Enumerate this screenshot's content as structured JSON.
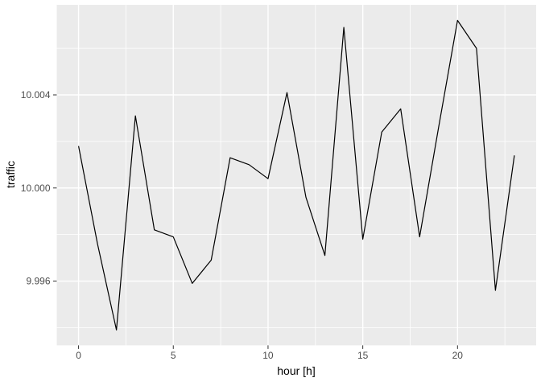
{
  "chart_data": {
    "type": "line",
    "title": "",
    "xlabel": "hour [h]",
    "ylabel": "traffic",
    "x": [
      0,
      1,
      2,
      3,
      4,
      5,
      6,
      7,
      8,
      9,
      10,
      11,
      12,
      13,
      14,
      15,
      16,
      17,
      18,
      19,
      20,
      21,
      22,
      23
    ],
    "values": [
      10.0018,
      9.9976,
      9.9939,
      10.0031,
      9.9982,
      9.9979,
      9.9959,
      9.9969,
      10.0013,
      10.001,
      10.0004,
      10.0041,
      9.9996,
      9.9971,
      10.0069,
      9.9978,
      10.0024,
      10.0034,
      9.9979,
      10.0026,
      10.0072,
      10.006,
      9.9956,
      10.0014
    ],
    "xlim": [
      -1.15,
      24.15
    ],
    "ylim": [
      9.99324,
      10.00787
    ],
    "x_major_ticks": [
      0,
      5,
      10,
      15,
      20
    ],
    "x_tick_labels": [
      "0",
      "5",
      "10",
      "15",
      "20"
    ],
    "x_minor_ticks": [
      2.5,
      7.5,
      12.5,
      17.5,
      22.5
    ],
    "y_major_ticks": [
      9.996,
      10.0,
      10.004
    ],
    "y_tick_labels": [
      "9.996",
      "10.000",
      "10.004"
    ],
    "y_minor_ticks": [
      9.994,
      9.998,
      10.002,
      10.006
    ],
    "grid": "on",
    "legend": "none",
    "colors": {
      "figure_background": "#ffffff",
      "panel_background": "#ebebeb",
      "grid_major": "#ffffff",
      "grid_minor": "#ffffff",
      "line": "#000000",
      "tick_mark": "#333333",
      "tick_text": "#4d4d4d",
      "axis_title_text": "#000000"
    }
  }
}
